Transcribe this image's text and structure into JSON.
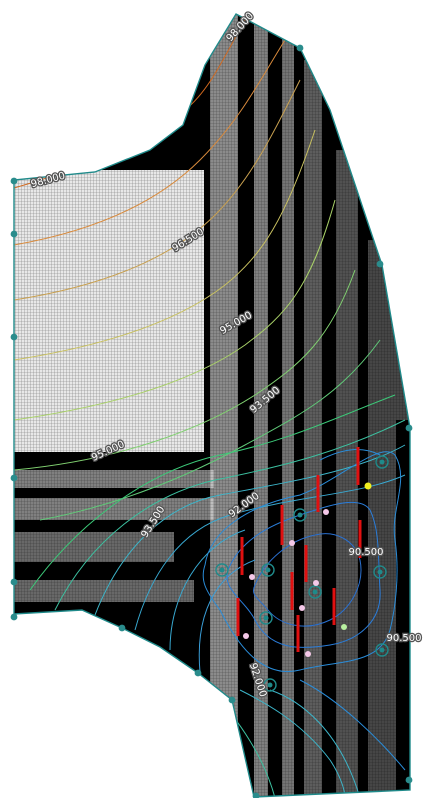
{
  "contour_labels": [
    {
      "text": "98.000",
      "color": "#d2691e"
    },
    {
      "text": "98.000",
      "color": "#d2691e"
    },
    {
      "text": "96.500",
      "color": "#c8a050"
    },
    {
      "text": "95.000",
      "color": "#b8c860"
    },
    {
      "text": "93.500",
      "color": "#7dc878"
    },
    {
      "text": "95.000",
      "color": "#b8c860"
    },
    {
      "text": "93.500",
      "color": "#3cc878"
    },
    {
      "text": "92.000",
      "color": "#3cb4c8"
    },
    {
      "text": "90.500",
      "color": "#2a8cd8"
    },
    {
      "text": "90.500",
      "color": "#2a8cd8"
    },
    {
      "text": "92.000",
      "color": "#3cb4c8"
    }
  ],
  "colors": {
    "background": "#ffffff",
    "domain_fill": "#000000",
    "mesh_light": "#d8d8d8",
    "boundary": "#1f8a8a",
    "node": "#2a8c8c",
    "pump_line": "#e01010"
  },
  "icons": {
    "boundary_node": "circle-node-icon",
    "well": "well-icon",
    "pump_marker": "pump-marker-icon"
  }
}
